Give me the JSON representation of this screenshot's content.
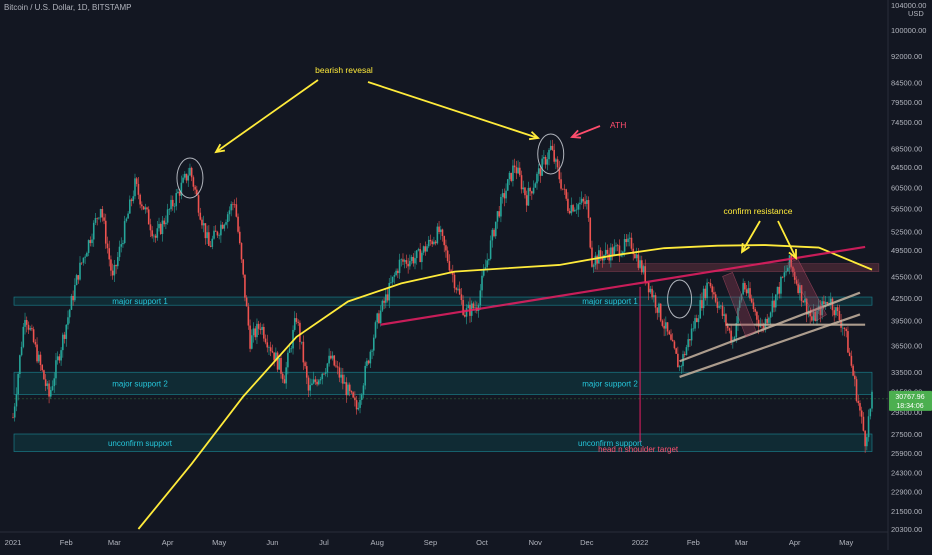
{
  "header": {
    "symbol_title": "Bitcoin / U.S. Dollar, 1D, BITSTAMP",
    "currency": "USD"
  },
  "price_badge": {
    "value": "30767.96",
    "countdown": "18:34:06"
  },
  "colors": {
    "background": "#131722",
    "candle_up": "#26a69a",
    "candle_down": "#ef5350",
    "ma_line": "#ffeb3b",
    "zone_fill": "#0f3d44",
    "zone_border": "#1fb5c4",
    "zone_text": "#26c6da",
    "magenta": "#e91e63",
    "pink_text": "#ff4d6d",
    "channel": "#c8b4a0",
    "badge": "#4caf50"
  },
  "chart_data": {
    "type": "candlestick",
    "title": "",
    "y_scale": "log",
    "ylim": [
      19800,
      104000
    ],
    "x_range": [
      "2021-01-01",
      "2022-05-16"
    ],
    "x_ticks": [
      "2021",
      "Feb",
      "Mar",
      "Apr",
      "May",
      "Jun",
      "Jul",
      "Aug",
      "Sep",
      "Oct",
      "Nov",
      "Dec",
      "2022",
      "Feb",
      "Mar",
      "Apr",
      "May"
    ],
    "y_ticks": [
      104000,
      100000,
      92000,
      84500,
      79500,
      74500,
      68500,
      64500,
      60500,
      56500,
      52500,
      49500,
      45500,
      42500,
      39500,
      36500,
      33500,
      31500,
      29500,
      27500,
      25900,
      24300,
      22900,
      21500,
      20300
    ],
    "price_anchors": [
      [
        "2021-01-01",
        29000
      ],
      [
        "2021-01-08",
        40500
      ],
      [
        "2021-01-22",
        31000
      ],
      [
        "2021-02-08",
        46000
      ],
      [
        "2021-02-21",
        57000
      ],
      [
        "2021-02-28",
        45000
      ],
      [
        "2021-03-13",
        61000
      ],
      [
        "2021-03-25",
        51500
      ],
      [
        "2021-04-14",
        64000
      ],
      [
        "2021-04-25",
        50000
      ],
      [
        "2021-05-10",
        58000
      ],
      [
        "2021-05-19",
        37000
      ],
      [
        "2021-05-25",
        39000
      ],
      [
        "2021-06-08",
        33000
      ],
      [
        "2021-06-15",
        40000
      ],
      [
        "2021-06-22",
        31500
      ],
      [
        "2021-07-05",
        35000
      ],
      [
        "2021-07-20",
        29800
      ],
      [
        "2021-08-01",
        39500
      ],
      [
        "2021-08-14",
        47500
      ],
      [
        "2021-08-25",
        48500
      ],
      [
        "2021-09-06",
        52500
      ],
      [
        "2021-09-21",
        40500
      ],
      [
        "2021-09-28",
        41500
      ],
      [
        "2021-10-10",
        55500
      ],
      [
        "2021-10-20",
        65000
      ],
      [
        "2021-10-27",
        58500
      ],
      [
        "2021-11-10",
        68500
      ],
      [
        "2021-11-20",
        57000
      ],
      [
        "2021-12-01",
        57500
      ],
      [
        "2021-12-04",
        48000
      ],
      [
        "2021-12-27",
        50500
      ],
      [
        "2022-01-10",
        42000
      ],
      [
        "2022-01-24",
        34000
      ],
      [
        "2022-02-10",
        45000
      ],
      [
        "2022-02-24",
        37000
      ],
      [
        "2022-03-02",
        44500
      ],
      [
        "2022-03-13",
        38500
      ],
      [
        "2022-03-29",
        47500
      ],
      [
        "2022-04-11",
        39500
      ],
      [
        "2022-04-21",
        42500
      ],
      [
        "2022-04-30",
        38500
      ],
      [
        "2022-05-12",
        27000
      ],
      [
        "2022-05-16",
        30700
      ]
    ],
    "moving_average": [
      [
        "2021-03-15",
        20300
      ],
      [
        "2021-04-15",
        25000
      ],
      [
        "2021-05-15",
        31000
      ],
      [
        "2021-06-15",
        37500
      ],
      [
        "2021-07-15",
        42000
      ],
      [
        "2021-08-15",
        44500
      ],
      [
        "2021-09-15",
        46200
      ],
      [
        "2021-10-15",
        46700
      ],
      [
        "2021-11-15",
        47200
      ],
      [
        "2021-12-15",
        48600
      ],
      [
        "2022-01-15",
        49800
      ],
      [
        "2022-02-15",
        50200
      ],
      [
        "2022-03-15",
        50300
      ],
      [
        "2022-04-15",
        49900
      ],
      [
        "2022-05-16",
        46500
      ]
    ],
    "zones": [
      {
        "label": "major support 1",
        "low": 41500,
        "high": 42600
      },
      {
        "label": "major support 2",
        "low": 31200,
        "high": 33500
      },
      {
        "label": "unconfirm support",
        "low": 26000,
        "high": 27500
      }
    ],
    "resistance_zone": {
      "from": "2021-12-05",
      "to": "2022-05-20",
      "low": 46200,
      "high": 47400
    },
    "trendline": {
      "from": [
        "2021-08-03",
        39000
      ],
      "to": [
        "2022-05-12",
        50000
      ]
    },
    "channel": [
      {
        "from": [
          "2022-01-24",
          33000
        ],
        "to": [
          "2022-05-09",
          40300
        ]
      },
      {
        "from": [
          "2022-01-24",
          34700
        ],
        "to": [
          "2022-05-09",
          43200
        ]
      },
      {
        "from": [
          "2022-02-20",
          39000
        ],
        "to": [
          "2022-05-12",
          39000
        ]
      }
    ],
    "target": {
      "date": "2022-01-01",
      "price": 27500,
      "label": "head n shoulder target"
    },
    "annotations": [
      {
        "text": "bearish revesal",
        "date": "2021-08-15",
        "price": 84500,
        "color": "#ffeb3b"
      },
      {
        "text": "ATH",
        "date": "2021-12-10",
        "price": 71500,
        "color": "#ff4d6d"
      },
      {
        "text": "confirm resistance",
        "date": "2022-03-25",
        "price": 54500,
        "color": "#ffeb3b"
      }
    ]
  }
}
